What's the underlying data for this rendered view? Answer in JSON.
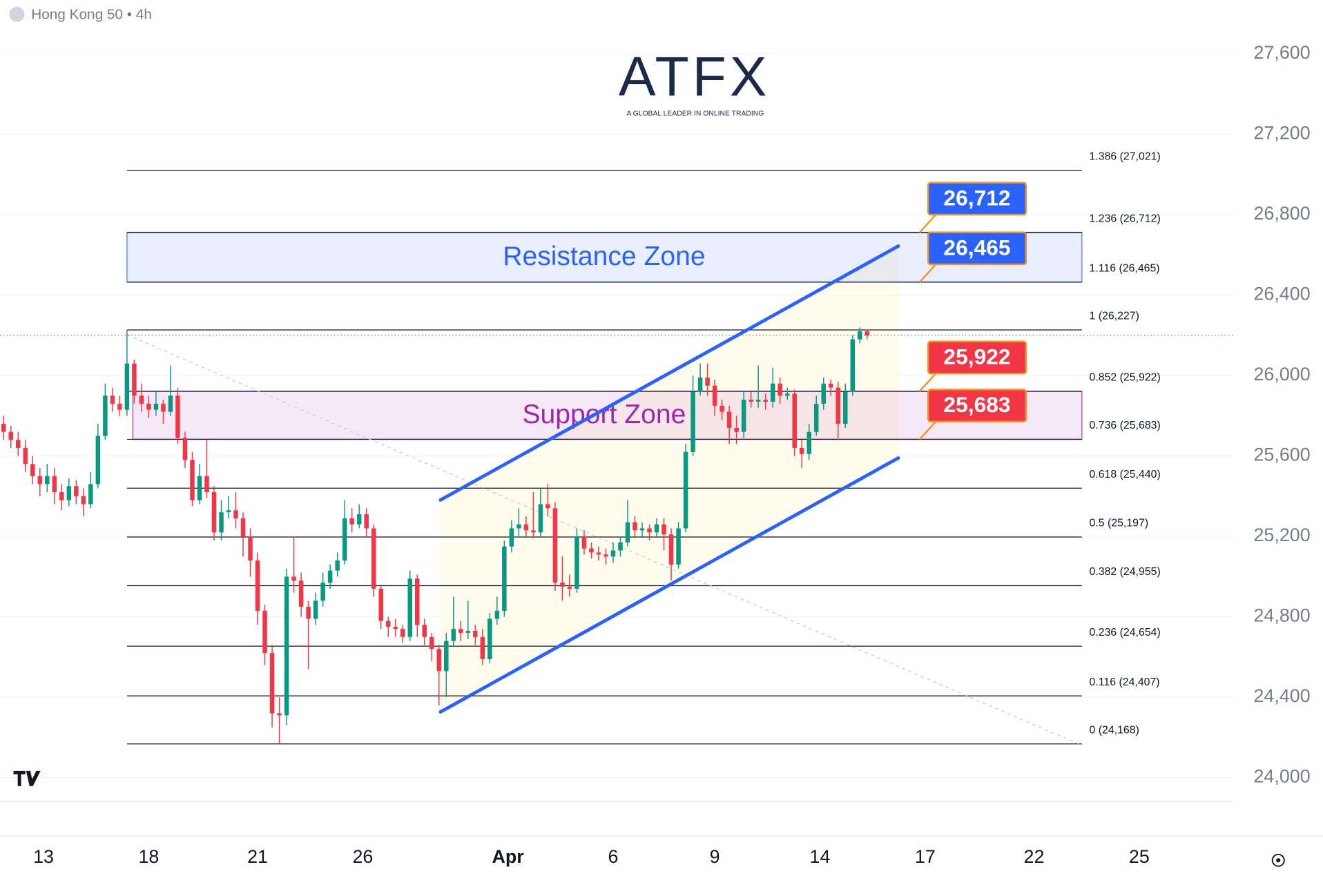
{
  "header": {
    "symbol": "Hong Kong 50 • 4h"
  },
  "logo": {
    "name": "ATFX",
    "tagline": "A GLOBAL LEADER IN ONLINE TRADING"
  },
  "chart_data": {
    "type": "candlestick",
    "series": [
      {
        "name": "Hong Kong 50",
        "up_color": "#089981",
        "down_color": "#f23645",
        "open": [
          25760,
          25720,
          25680,
          25640,
          25560,
          25500,
          25460,
          25500,
          25420,
          25380,
          25450,
          25400,
          25360,
          25460,
          25700,
          25900,
          25860,
          25830,
          26060,
          25900,
          25860,
          25830,
          25860,
          25820,
          25900,
          25690,
          25580,
          25380,
          25500,
          25420,
          25220,
          25320,
          25330,
          25290,
          25200,
          25080,
          24830,
          24620,
          24320,
          24310,
          25000,
          24980,
          24850,
          24790,
          24880,
          24970,
          25030,
          25080,
          25290,
          25260,
          25310,
          25240,
          24940,
          24780,
          24750,
          24740,
          24700,
          24990,
          24760,
          24700,
          24640,
          24530,
          24680,
          24740,
          24720,
          24730,
          24700,
          24590,
          24790,
          24830,
          25150,
          25240,
          25260,
          25230,
          25220,
          25360,
          25340,
          24970,
          24950,
          24940,
          25200,
          25140,
          25120,
          25110,
          25100,
          25130,
          25170,
          25270,
          25230,
          25240,
          25220,
          25260,
          25210,
          25060,
          25240,
          25620,
          25920,
          25990,
          25950,
          25850,
          25820,
          25740,
          25720,
          25880,
          25870,
          25880,
          25870,
          25960,
          25900,
          25910,
          25640,
          25610,
          25720,
          25860,
          25960,
          25940,
          25760,
          25920,
          26180,
          26220
        ],
        "high": [
          25800,
          25750,
          25720,
          25680,
          25600,
          25540,
          25560,
          25540,
          25460,
          25490,
          25480,
          25440,
          25520,
          25760,
          25960,
          25940,
          25900,
          26227,
          26080,
          25960,
          25900,
          25920,
          25880,
          26050,
          25940,
          25720,
          25620,
          25560,
          25680,
          25450,
          25380,
          25400,
          25420,
          25320,
          25240,
          25120,
          24860,
          24660,
          24400,
          25040,
          25200,
          25020,
          24880,
          24920,
          25020,
          25060,
          25120,
          25380,
          25340,
          25360,
          25340,
          25260,
          24960,
          24800,
          24790,
          24760,
          25030,
          25010,
          24790,
          24720,
          24660,
          24720,
          24900,
          24780,
          24880,
          24760,
          24740,
          24820,
          24900,
          25180,
          25280,
          25340,
          25300,
          25420,
          25440,
          25460,
          25370,
          25100,
          25010,
          25240,
          25230,
          25170,
          25150,
          25140,
          25170,
          25200,
          25380,
          25300,
          25270,
          25260,
          25290,
          25290,
          25240,
          25270,
          25660,
          26000,
          26060,
          26060,
          25980,
          25880,
          25850,
          25800,
          25920,
          25920,
          26050,
          25910,
          26040,
          25990,
          25940,
          25930,
          25680,
          25760,
          25900,
          25990,
          25980,
          25970,
          25960,
          26200,
          26240,
          26230
        ],
        "low": [
          25680,
          25640,
          25600,
          25520,
          25460,
          25400,
          25420,
          25360,
          25330,
          25350,
          25360,
          25300,
          25340,
          25440,
          25680,
          25820,
          25800,
          25800,
          25860,
          25820,
          25790,
          25800,
          25760,
          25800,
          25660,
          25540,
          25350,
          25360,
          25390,
          25180,
          25180,
          25290,
          25240,
          25100,
          25000,
          24760,
          24560,
          24250,
          24168,
          24260,
          24920,
          24800,
          24540,
          24760,
          24850,
          24940,
          25000,
          25060,
          25220,
          25240,
          25200,
          24900,
          24740,
          24700,
          24700,
          24670,
          24680,
          24700,
          24660,
          24580,
          24360,
          24400,
          24650,
          24680,
          24690,
          24660,
          24560,
          24570,
          24760,
          24800,
          25120,
          25200,
          25200,
          25190,
          25200,
          25300,
          24930,
          24880,
          24900,
          24920,
          25110,
          25090,
          25080,
          25060,
          25070,
          25100,
          25150,
          25200,
          25200,
          25180,
          25200,
          25130,
          24980,
          25040,
          25220,
          25600,
          25900,
          25900,
          25800,
          25780,
          25660,
          25660,
          25690,
          25840,
          25840,
          25830,
          25840,
          25860,
          25880,
          25600,
          25540,
          25580,
          25700,
          25830,
          25900,
          25680,
          25740,
          25900,
          26160,
          26180
        ],
        "close": [
          25720,
          25680,
          25640,
          25560,
          25500,
          25460,
          25500,
          25420,
          25380,
          25450,
          25400,
          25360,
          25460,
          25700,
          25900,
          25860,
          25830,
          26060,
          25900,
          25860,
          25830,
          25860,
          25820,
          25900,
          25690,
          25580,
          25380,
          25500,
          25420,
          25220,
          25320,
          25330,
          25290,
          25200,
          25080,
          24830,
          24620,
          24320,
          24310,
          25000,
          24980,
          24850,
          24790,
          24880,
          24970,
          25030,
          25080,
          25290,
          25260,
          25310,
          25240,
          24940,
          24780,
          24750,
          24740,
          24700,
          24990,
          24760,
          24700,
          24640,
          24530,
          24680,
          24740,
          24720,
          24730,
          24700,
          24590,
          24790,
          24830,
          25150,
          25240,
          25260,
          25230,
          25220,
          25360,
          25340,
          24970,
          24950,
          24940,
          25200,
          25140,
          25120,
          25110,
          25100,
          25130,
          25170,
          25270,
          25230,
          25240,
          25220,
          25260,
          25210,
          25060,
          25240,
          25620,
          25920,
          25990,
          25950,
          25850,
          25820,
          25740,
          25720,
          25880,
          25870,
          25880,
          25870,
          25960,
          25900,
          25910,
          25640,
          25610,
          25720,
          25860,
          25960,
          25940,
          25760,
          25920,
          26180,
          26220,
          26200
        ]
      }
    ],
    "xlim": [
      -0.5,
      169.5
    ],
    "xticks": [
      {
        "value": 5.5,
        "label": "13"
      },
      {
        "value": 20,
        "label": "18"
      },
      {
        "value": 35,
        "label": "21"
      },
      {
        "value": 49.5,
        "label": "26"
      },
      {
        "value": 69.5,
        "label": "Apr"
      },
      {
        "value": 84,
        "label": "6"
      },
      {
        "value": 98,
        "label": "9"
      },
      {
        "value": 112.5,
        "label": "14"
      },
      {
        "value": 127,
        "label": "17"
      },
      {
        "value": 142,
        "label": "22"
      },
      {
        "value": 156.5,
        "label": "25"
      }
    ],
    "ylim": [
      23715,
      27868
    ],
    "yticks": [
      {
        "value": 24000,
        "label": "24,000"
      },
      {
        "value": 24400,
        "label": "24,400"
      },
      {
        "value": 24800,
        "label": "24,800"
      },
      {
        "value": 25200,
        "label": "25,200"
      },
      {
        "value": 25600,
        "label": "25,600"
      },
      {
        "value": 26000,
        "label": "26,000"
      },
      {
        "value": 26400,
        "label": "26,400"
      },
      {
        "value": 26800,
        "label": "26,800"
      },
      {
        "value": 27200,
        "label": "27,200"
      },
      {
        "value": 27600,
        "label": "27,600"
      }
    ],
    "grid": true,
    "fib_range": [
      17,
      148.6
    ],
    "fib_levels": [
      {
        "price": 27021,
        "label": "1.386 (27,021)"
      },
      {
        "price": 26712,
        "label": "1.236 (26,712)"
      },
      {
        "price": 26465,
        "label": "1.116 (26,465)"
      },
      {
        "price": 26227,
        "label": "1 (26,227)"
      },
      {
        "price": 25922,
        "label": "0.852 (25,922)"
      },
      {
        "price": 25683,
        "label": "0.736 (25,683)"
      },
      {
        "price": 25440,
        "label": "0.618 (25,440)"
      },
      {
        "price": 25197,
        "label": "0.5 (25,197)"
      },
      {
        "price": 24955,
        "label": "0.382 (24,955)"
      },
      {
        "price": 24654,
        "label": "0.236 (24,654)"
      },
      {
        "price": 24407,
        "label": "0.116 (24,407)"
      },
      {
        "price": 24168,
        "label": "0 (24,168)"
      }
    ],
    "zones": [
      {
        "label": "Resistance Zone",
        "x": [
          17,
          148.6
        ],
        "y": [
          26465,
          26712
        ],
        "color": "#2962ff"
      },
      {
        "label": "Support Zone",
        "x": [
          17.8,
          148.6
        ],
        "y": [
          25683,
          25922
        ],
        "color": "#9c27b0"
      }
    ],
    "trendlines": [
      {
        "x": [
          60.2,
          123.3
        ],
        "y": [
          25381,
          26644
        ],
        "color": "#2962ff"
      },
      {
        "x": [
          60.2,
          123.3
        ],
        "y": [
          24327,
          25590
        ],
        "color": "#2962ff"
      }
    ],
    "dotted_line": {
      "x": [
        17,
        148.4
      ],
      "y": [
        26203,
        24164
      ]
    },
    "last_price": 26200,
    "price_labels": [
      {
        "value": 26712,
        "label": "26,712",
        "color": "#2962ff"
      },
      {
        "value": 26465,
        "label": "26,465",
        "color": "#2962ff"
      },
      {
        "value": 25922,
        "label": "25,922",
        "color": "#f23645"
      },
      {
        "value": 25683,
        "label": "25,683",
        "color": "#f23645"
      }
    ]
  }
}
